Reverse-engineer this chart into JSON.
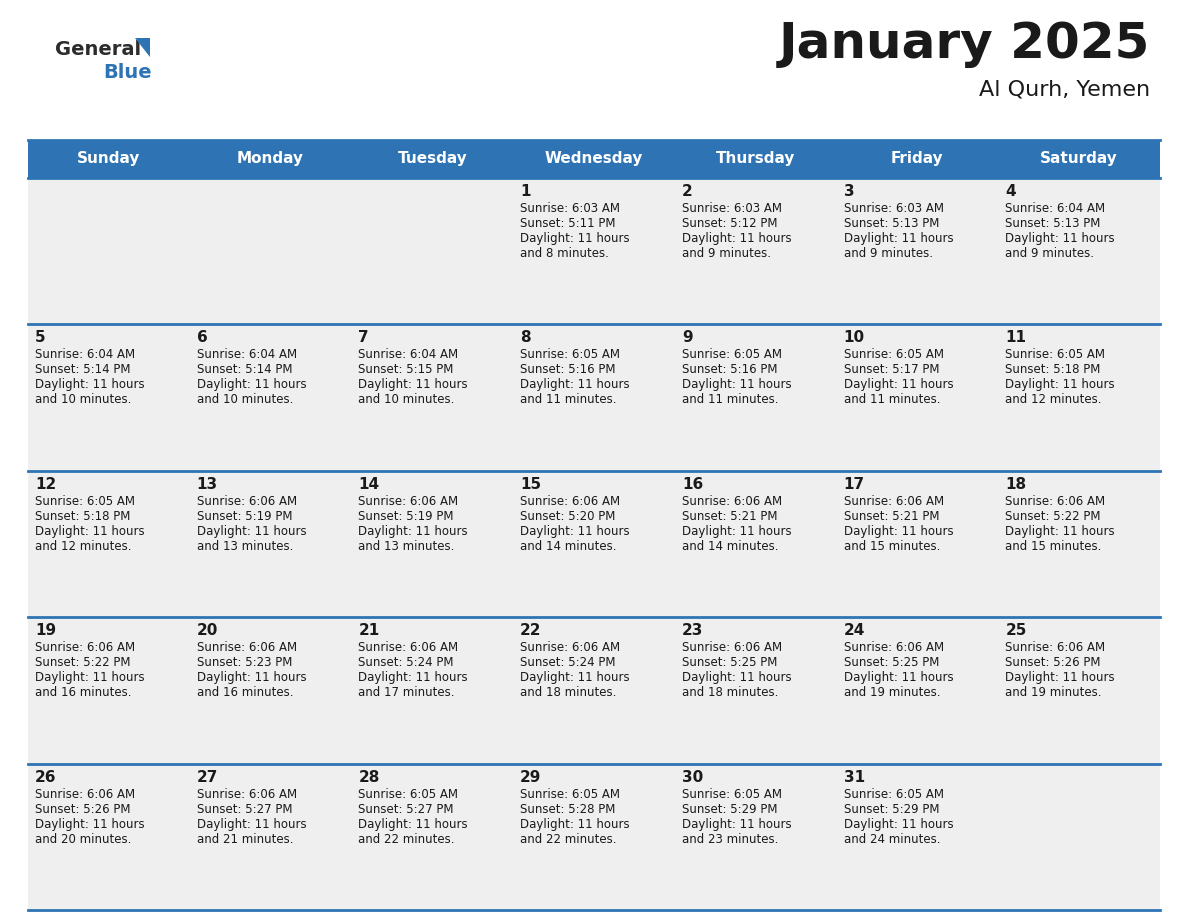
{
  "title": "January 2025",
  "subtitle": "Al Qurh, Yemen",
  "header_color": "#2E74B5",
  "header_text_color": "#FFFFFF",
  "cell_bg_color": "#EFEFEF",
  "border_color": "#2E74B5",
  "days_of_week": [
    "Sunday",
    "Monday",
    "Tuesday",
    "Wednesday",
    "Thursday",
    "Friday",
    "Saturday"
  ],
  "weeks": [
    [
      {
        "day": "",
        "sunrise": "",
        "sunset": "",
        "daylight_h": "",
        "daylight_m": ""
      },
      {
        "day": "",
        "sunrise": "",
        "sunset": "",
        "daylight_h": "",
        "daylight_m": ""
      },
      {
        "day": "",
        "sunrise": "",
        "sunset": "",
        "daylight_h": "",
        "daylight_m": ""
      },
      {
        "day": "1",
        "sunrise": "6:03 AM",
        "sunset": "5:11 PM",
        "daylight_h": "11 hours",
        "daylight_m": "and 8 minutes."
      },
      {
        "day": "2",
        "sunrise": "6:03 AM",
        "sunset": "5:12 PM",
        "daylight_h": "11 hours",
        "daylight_m": "and 9 minutes."
      },
      {
        "day": "3",
        "sunrise": "6:03 AM",
        "sunset": "5:13 PM",
        "daylight_h": "11 hours",
        "daylight_m": "and 9 minutes."
      },
      {
        "day": "4",
        "sunrise": "6:04 AM",
        "sunset": "5:13 PM",
        "daylight_h": "11 hours",
        "daylight_m": "and 9 minutes."
      }
    ],
    [
      {
        "day": "5",
        "sunrise": "6:04 AM",
        "sunset": "5:14 PM",
        "daylight_h": "11 hours",
        "daylight_m": "and 10 minutes."
      },
      {
        "day": "6",
        "sunrise": "6:04 AM",
        "sunset": "5:14 PM",
        "daylight_h": "11 hours",
        "daylight_m": "and 10 minutes."
      },
      {
        "day": "7",
        "sunrise": "6:04 AM",
        "sunset": "5:15 PM",
        "daylight_h": "11 hours",
        "daylight_m": "and 10 minutes."
      },
      {
        "day": "8",
        "sunrise": "6:05 AM",
        "sunset": "5:16 PM",
        "daylight_h": "11 hours",
        "daylight_m": "and 11 minutes."
      },
      {
        "day": "9",
        "sunrise": "6:05 AM",
        "sunset": "5:16 PM",
        "daylight_h": "11 hours",
        "daylight_m": "and 11 minutes."
      },
      {
        "day": "10",
        "sunrise": "6:05 AM",
        "sunset": "5:17 PM",
        "daylight_h": "11 hours",
        "daylight_m": "and 11 minutes."
      },
      {
        "day": "11",
        "sunrise": "6:05 AM",
        "sunset": "5:18 PM",
        "daylight_h": "11 hours",
        "daylight_m": "and 12 minutes."
      }
    ],
    [
      {
        "day": "12",
        "sunrise": "6:05 AM",
        "sunset": "5:18 PM",
        "daylight_h": "11 hours",
        "daylight_m": "and 12 minutes."
      },
      {
        "day": "13",
        "sunrise": "6:06 AM",
        "sunset": "5:19 PM",
        "daylight_h": "11 hours",
        "daylight_m": "and 13 minutes."
      },
      {
        "day": "14",
        "sunrise": "6:06 AM",
        "sunset": "5:19 PM",
        "daylight_h": "11 hours",
        "daylight_m": "and 13 minutes."
      },
      {
        "day": "15",
        "sunrise": "6:06 AM",
        "sunset": "5:20 PM",
        "daylight_h": "11 hours",
        "daylight_m": "and 14 minutes."
      },
      {
        "day": "16",
        "sunrise": "6:06 AM",
        "sunset": "5:21 PM",
        "daylight_h": "11 hours",
        "daylight_m": "and 14 minutes."
      },
      {
        "day": "17",
        "sunrise": "6:06 AM",
        "sunset": "5:21 PM",
        "daylight_h": "11 hours",
        "daylight_m": "and 15 minutes."
      },
      {
        "day": "18",
        "sunrise": "6:06 AM",
        "sunset": "5:22 PM",
        "daylight_h": "11 hours",
        "daylight_m": "and 15 minutes."
      }
    ],
    [
      {
        "day": "19",
        "sunrise": "6:06 AM",
        "sunset": "5:22 PM",
        "daylight_h": "11 hours",
        "daylight_m": "and 16 minutes."
      },
      {
        "day": "20",
        "sunrise": "6:06 AM",
        "sunset": "5:23 PM",
        "daylight_h": "11 hours",
        "daylight_m": "and 16 minutes."
      },
      {
        "day": "21",
        "sunrise": "6:06 AM",
        "sunset": "5:24 PM",
        "daylight_h": "11 hours",
        "daylight_m": "and 17 minutes."
      },
      {
        "day": "22",
        "sunrise": "6:06 AM",
        "sunset": "5:24 PM",
        "daylight_h": "11 hours",
        "daylight_m": "and 18 minutes."
      },
      {
        "day": "23",
        "sunrise": "6:06 AM",
        "sunset": "5:25 PM",
        "daylight_h": "11 hours",
        "daylight_m": "and 18 minutes."
      },
      {
        "day": "24",
        "sunrise": "6:06 AM",
        "sunset": "5:25 PM",
        "daylight_h": "11 hours",
        "daylight_m": "and 19 minutes."
      },
      {
        "day": "25",
        "sunrise": "6:06 AM",
        "sunset": "5:26 PM",
        "daylight_h": "11 hours",
        "daylight_m": "and 19 minutes."
      }
    ],
    [
      {
        "day": "26",
        "sunrise": "6:06 AM",
        "sunset": "5:26 PM",
        "daylight_h": "11 hours",
        "daylight_m": "and 20 minutes."
      },
      {
        "day": "27",
        "sunrise": "6:06 AM",
        "sunset": "5:27 PM",
        "daylight_h": "11 hours",
        "daylight_m": "and 21 minutes."
      },
      {
        "day": "28",
        "sunrise": "6:05 AM",
        "sunset": "5:27 PM",
        "daylight_h": "11 hours",
        "daylight_m": "and 22 minutes."
      },
      {
        "day": "29",
        "sunrise": "6:05 AM",
        "sunset": "5:28 PM",
        "daylight_h": "11 hours",
        "daylight_m": "and 22 minutes."
      },
      {
        "day": "30",
        "sunrise": "6:05 AM",
        "sunset": "5:29 PM",
        "daylight_h": "11 hours",
        "daylight_m": "and 23 minutes."
      },
      {
        "day": "31",
        "sunrise": "6:05 AM",
        "sunset": "5:29 PM",
        "daylight_h": "11 hours",
        "daylight_m": "and 24 minutes."
      },
      {
        "day": "",
        "sunrise": "",
        "sunset": "",
        "daylight_h": "",
        "daylight_m": ""
      }
    ]
  ],
  "logo_general_color": "#2C2C2C",
  "logo_blue_color": "#2E74B5",
  "logo_triangle_color": "#2E74B5",
  "title_fontsize": 36,
  "subtitle_fontsize": 16,
  "header_fontsize": 11,
  "day_num_fontsize": 11,
  "cell_text_fontsize": 8.5
}
